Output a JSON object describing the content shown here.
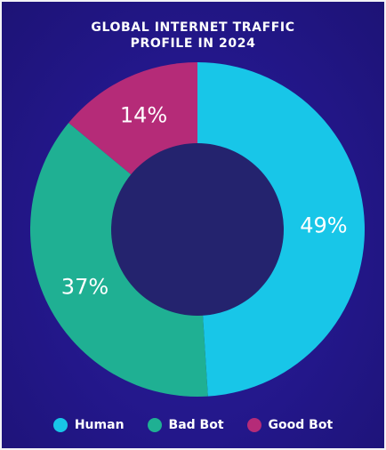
{
  "chart_data": {
    "type": "pie",
    "title_lines": [
      "GLOBAL INTERNET TRAFFIC",
      "PROFILE IN 2024"
    ],
    "categories": [
      "Human",
      "Bad Bot",
      "Good Bot"
    ],
    "values": [
      49,
      37,
      14
    ],
    "labels": [
      "49%",
      "37%",
      "14%"
    ],
    "colors": [
      "#18c6e8",
      "#1fb093",
      "#b52b78"
    ],
    "donut": true,
    "legend_position": "bottom"
  },
  "colors": {
    "background": "#23178a",
    "center": "#24236e",
    "text": "#ffffff"
  }
}
